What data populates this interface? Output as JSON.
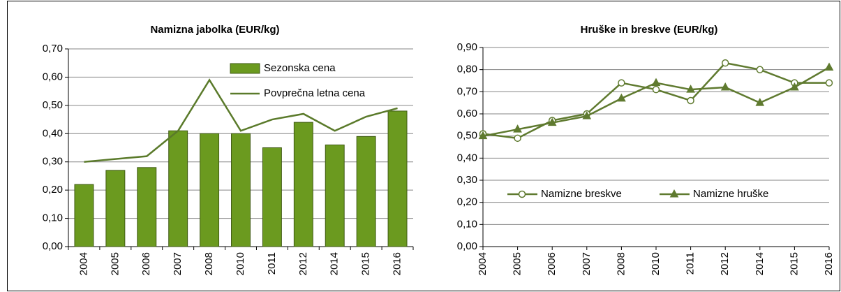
{
  "chart_data": [
    {
      "type": "bar",
      "title": "Namizna jabolka (EUR/kg)",
      "categories": [
        "2004",
        "2005",
        "2006",
        "2007",
        "2008",
        "2010",
        "2011",
        "2012",
        "2014",
        "2015",
        "2016"
      ],
      "series": [
        {
          "name": "Sezonska cena",
          "type": "bar",
          "color": "#6b9a1f",
          "values": [
            0.22,
            0.27,
            0.28,
            0.41,
            0.4,
            0.4,
            0.35,
            0.44,
            0.36,
            0.39,
            0.48
          ]
        },
        {
          "name": "Povprečna letna cena",
          "type": "line",
          "color": "#5a7a2a",
          "values": [
            0.3,
            0.31,
            0.32,
            0.41,
            0.59,
            0.41,
            0.45,
            0.47,
            0.41,
            0.46,
            0.49
          ]
        }
      ],
      "ylim": [
        0,
        0.7
      ],
      "yticks": [
        {
          "value": 0,
          "label": "0,00"
        },
        {
          "value": 0.1,
          "label": "0,10"
        },
        {
          "value": 0.2,
          "label": "0,20"
        },
        {
          "value": 0.3,
          "label": "0,30"
        },
        {
          "value": 0.4,
          "label": "0,40"
        },
        {
          "value": 0.5,
          "label": "0,50"
        },
        {
          "value": 0.6,
          "label": "0,60"
        },
        {
          "value": 0.7,
          "label": "0,70"
        }
      ],
      "grid": true,
      "legend": "upper right"
    },
    {
      "type": "line",
      "title": "Hruške in breskve (EUR/kg)",
      "categories": [
        "2004",
        "2005",
        "2006",
        "2007",
        "2008",
        "2010",
        "2011",
        "2012",
        "2014",
        "2015",
        "2016"
      ],
      "series": [
        {
          "name": "Namizne breskve",
          "color": "#5f7a2f",
          "marker": "circle",
          "values": [
            0.51,
            0.49,
            0.57,
            0.6,
            0.74,
            0.71,
            0.66,
            0.83,
            0.8,
            0.74,
            0.74
          ]
        },
        {
          "name": "Namizne hruške",
          "color": "#5f7a2f",
          "marker": "triangle",
          "values": [
            0.5,
            0.53,
            0.56,
            0.59,
            0.67,
            0.74,
            0.71,
            0.72,
            0.65,
            0.72,
            0.81
          ]
        }
      ],
      "ylim": [
        0,
        0.9
      ],
      "yticks": [
        {
          "value": 0,
          "label": "0,00"
        },
        {
          "value": 0.1,
          "label": "0,10"
        },
        {
          "value": 0.2,
          "label": "0,20"
        },
        {
          "value": 0.3,
          "label": "0,30"
        },
        {
          "value": 0.4,
          "label": "0,40"
        },
        {
          "value": 0.5,
          "label": "0,50"
        },
        {
          "value": 0.6,
          "label": "0,60"
        },
        {
          "value": 0.7,
          "label": "0,70"
        },
        {
          "value": 0.8,
          "label": "0,80"
        },
        {
          "value": 0.9,
          "label": "0,90"
        }
      ],
      "grid": true,
      "legend": "center"
    }
  ]
}
